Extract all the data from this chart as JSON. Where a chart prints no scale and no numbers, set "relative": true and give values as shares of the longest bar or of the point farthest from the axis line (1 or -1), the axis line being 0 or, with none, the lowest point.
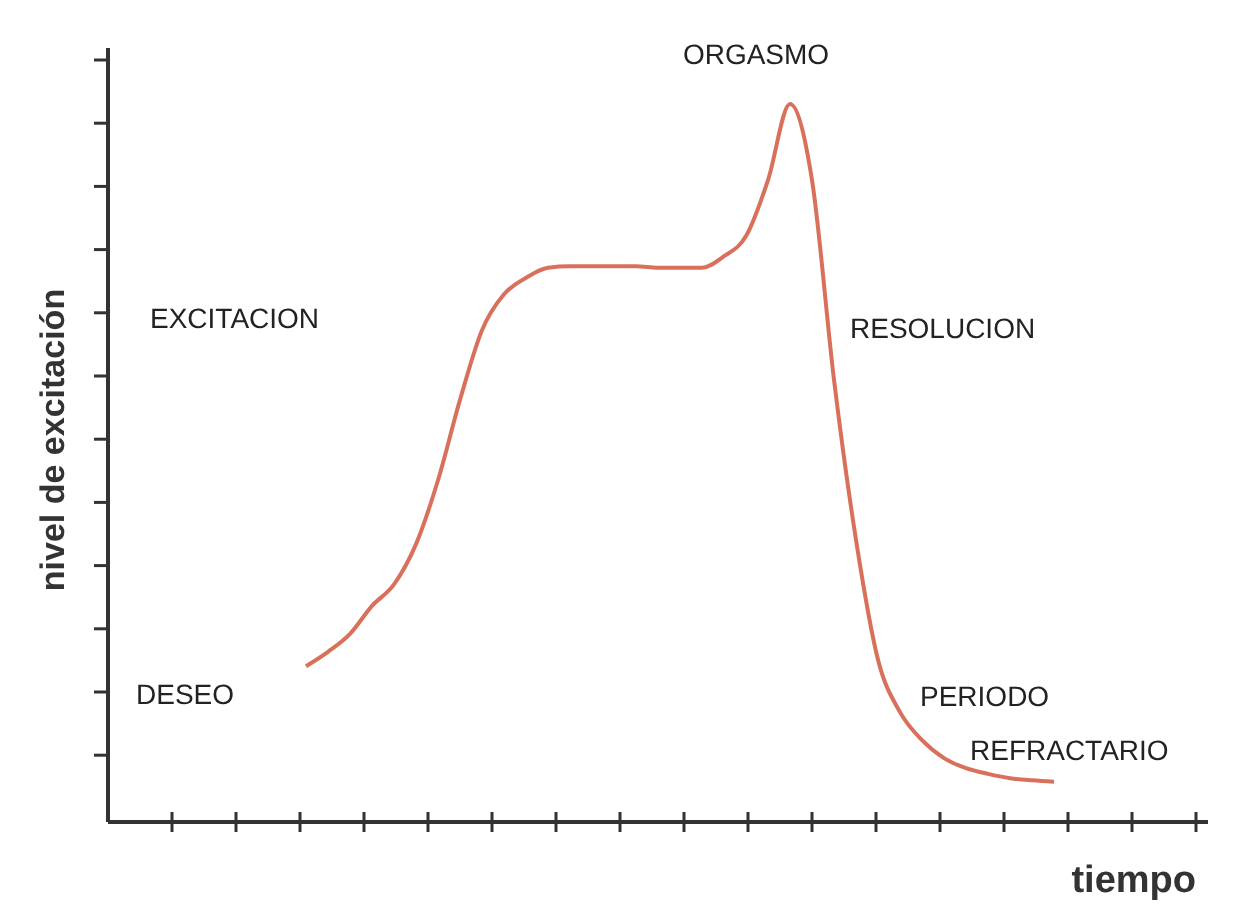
{
  "chart_data": {
    "type": "line",
    "relative": true,
    "xlabel": "tiempo",
    "ylabel": "nivel de excitación",
    "marker": "none",
    "line_style": "solid",
    "annotations": [
      "ORGASMO",
      "EXCITACION",
      "RESOLUCION",
      "DESEO",
      "PERIODO",
      "REFRACTARIO"
    ],
    "categories": [
      null,
      null,
      null,
      null,
      null,
      null,
      null,
      null,
      null,
      null,
      null,
      null,
      null,
      null,
      null,
      null,
      null,
      null,
      null,
      null,
      null,
      null,
      null,
      null,
      null,
      null,
      null,
      null,
      null,
      null,
      null,
      null,
      null,
      null,
      null,
      null,
      null,
      null,
      null,
      null,
      null,
      null,
      null,
      null,
      null,
      null,
      null,
      null,
      null,
      null,
      null
    ],
    "series": [
      {
        "color": "#d9705c",
        "values": [
          null,
          null,
          null,
          null,
          null,
          null,
          null,
          null,
          null,
          0.217,
          0.237,
          0.262,
          0.301,
          0.331,
          0.387,
          0.476,
          0.588,
          0.685,
          0.735,
          0.758,
          0.772,
          0.774,
          0.774,
          0.774,
          0.774,
          0.772,
          0.772,
          0.772,
          0.788,
          0.816,
          0.894,
          1,
          0.894,
          0.616,
          0.393,
          0.226,
          0.153,
          0.114,
          0.089,
          0.075,
          0.067,
          0.061,
          0.058,
          0.056,
          null,
          null,
          null,
          null,
          null,
          null,
          null
        ]
      }
    ]
  }
}
